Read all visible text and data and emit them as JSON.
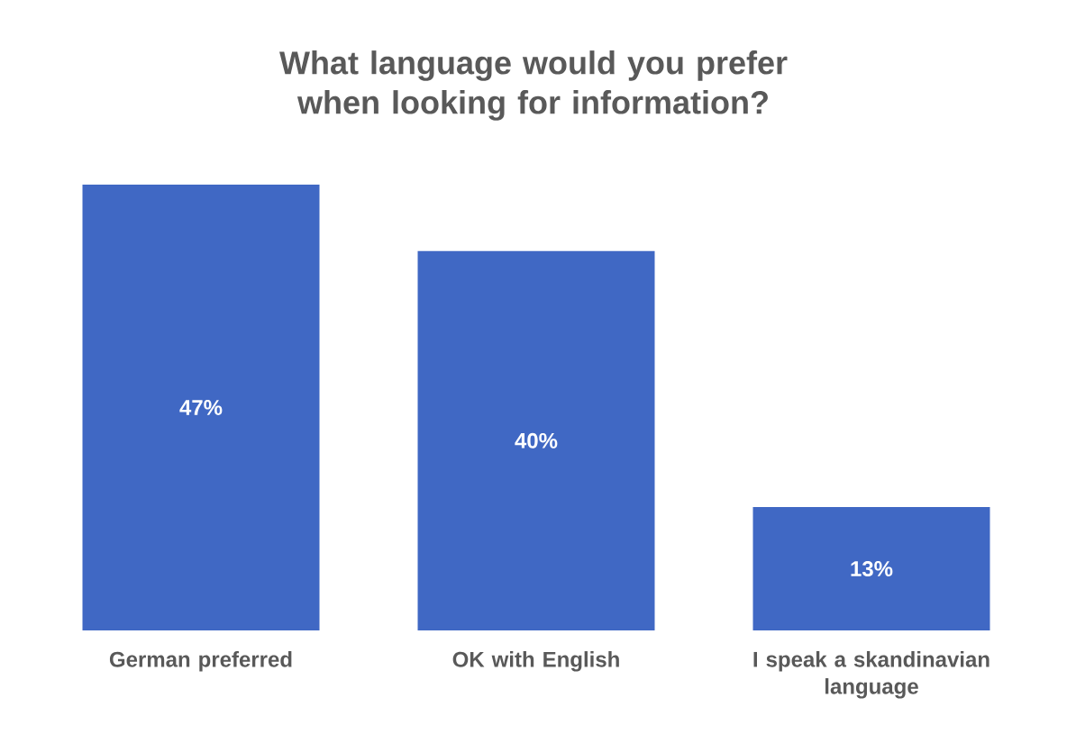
{
  "chart_data": {
    "type": "bar",
    "title": "What language would you prefer when looking for information?",
    "categories": [
      "German preferred",
      "OK with English",
      "I speak a skandinavian language"
    ],
    "values": [
      47,
      40,
      13
    ],
    "value_labels": [
      "47%",
      "40%",
      "13%"
    ],
    "color": "#4068c4"
  }
}
